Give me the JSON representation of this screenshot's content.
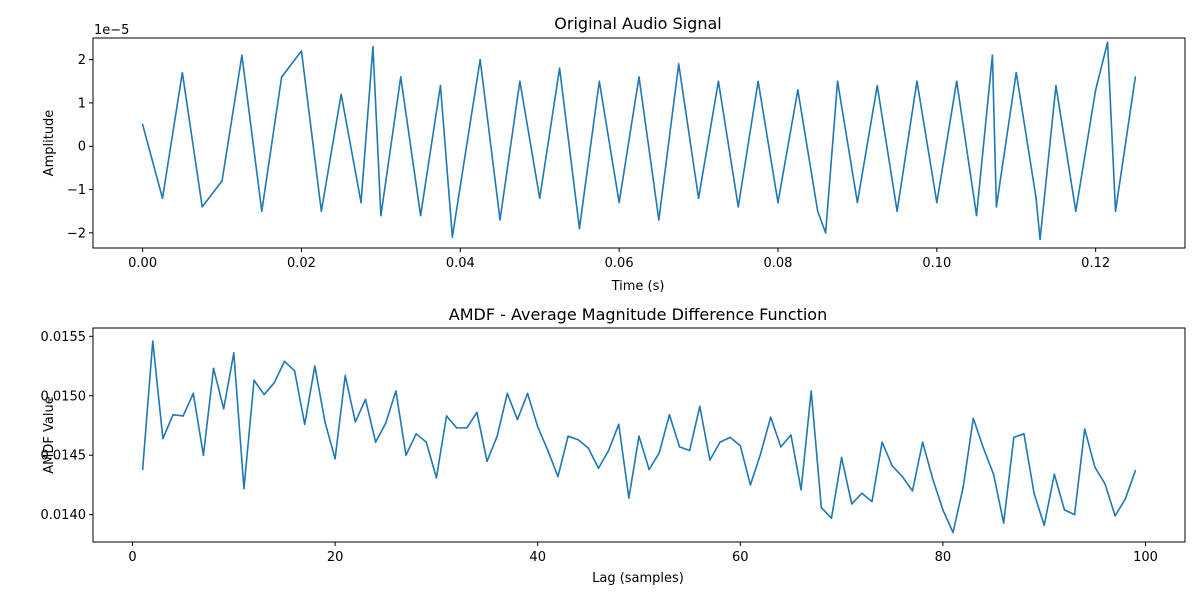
{
  "colors": {
    "series": "#1f77b4"
  },
  "chart_data": [
    {
      "type": "line",
      "title": "Original Audio Signal",
      "xlabel": "Time (s)",
      "ylabel": "Amplitude",
      "y_offset_label": "1e−5",
      "x_ticks": [
        0.0,
        0.02,
        0.04,
        0.06,
        0.08,
        0.1,
        0.12
      ],
      "x_tick_labels": [
        "0.00",
        "0.02",
        "0.04",
        "0.06",
        "0.08",
        "0.10",
        "0.12"
      ],
      "y_ticks": [
        -2,
        -1,
        0,
        1,
        2
      ],
      "y_tick_labels": [
        "−2",
        "−1",
        "0",
        "1",
        "2"
      ],
      "xlim": [
        -0.00625,
        0.13125
      ],
      "ylim": [
        -2.35,
        2.5
      ],
      "x": [
        0.0,
        0.0025,
        0.005,
        0.0075,
        0.01,
        0.0125,
        0.015,
        0.0175,
        0.02,
        0.0225,
        0.025,
        0.0275,
        0.029,
        0.03,
        0.0325,
        0.035,
        0.0375,
        0.039,
        0.0395,
        0.0425,
        0.045,
        0.0475,
        0.05,
        0.0525,
        0.055,
        0.0575,
        0.06,
        0.0625,
        0.065,
        0.0675,
        0.07,
        0.0725,
        0.075,
        0.0775,
        0.08,
        0.0825,
        0.085,
        0.086,
        0.0875,
        0.09,
        0.0925,
        0.095,
        0.0975,
        0.1,
        0.1025,
        0.105,
        0.107,
        0.1075,
        0.11,
        0.1125,
        0.113,
        0.115,
        0.1175,
        0.12,
        0.1215,
        0.1225,
        0.125
      ],
      "values": [
        0.5,
        -1.2,
        1.7,
        -1.4,
        -0.8,
        2.1,
        -1.5,
        1.6,
        2.2,
        -1.5,
        1.2,
        -1.3,
        2.3,
        -1.6,
        1.6,
        -1.6,
        1.4,
        -2.1,
        -1.5,
        2.0,
        -1.7,
        1.5,
        -1.2,
        1.8,
        -1.9,
        1.5,
        -1.3,
        1.6,
        -1.7,
        1.9,
        -1.2,
        1.5,
        -1.4,
        1.5,
        -1.3,
        1.3,
        -1.5,
        -2.0,
        1.5,
        -1.3,
        1.4,
        -1.5,
        1.5,
        -1.3,
        1.5,
        -1.6,
        2.1,
        -1.4,
        1.7,
        -1.2,
        -2.15,
        1.4,
        -1.5,
        1.3,
        2.4,
        -1.5,
        1.6
      ],
      "grid": false
    },
    {
      "type": "line",
      "title": "AMDF - Average Magnitude Difference Function",
      "xlabel": "Lag (samples)",
      "ylabel": "AMDF Value",
      "x_ticks": [
        0,
        20,
        40,
        60,
        80,
        100
      ],
      "x_tick_labels": [
        "0",
        "20",
        "40",
        "60",
        "80",
        "100"
      ],
      "y_ticks": [
        0.014,
        0.0145,
        0.015,
        0.0155
      ],
      "y_tick_labels": [
        "0.0140",
        "0.0145",
        "0.0150",
        "0.0155"
      ],
      "xlim": [
        -3.9,
        103.9
      ],
      "ylim": [
        0.01377,
        0.01557
      ],
      "x": [
        1,
        2,
        3,
        4,
        5,
        6,
        7,
        8,
        9,
        10,
        11,
        12,
        13,
        14,
        15,
        16,
        17,
        18,
        19,
        20,
        21,
        22,
        23,
        24,
        25,
        26,
        27,
        28,
        29,
        30,
        31,
        32,
        33,
        34,
        35,
        36,
        37,
        38,
        39,
        40,
        41,
        42,
        43,
        44,
        45,
        46,
        47,
        48,
        49,
        50,
        51,
        52,
        53,
        54,
        55,
        56,
        57,
        58,
        59,
        60,
        61,
        62,
        63,
        64,
        65,
        66,
        67,
        68,
        69,
        70,
        71,
        72,
        73,
        74,
        75,
        76,
        77,
        78,
        79,
        80,
        81,
        82,
        83,
        84,
        85,
        86,
        87,
        88,
        89,
        90,
        91,
        92,
        93,
        94,
        95,
        96,
        97,
        98,
        99
      ],
      "values": [
        0.01438,
        0.01546,
        0.01464,
        0.01484,
        0.01483,
        0.01502,
        0.0145,
        0.01523,
        0.01489,
        0.01536,
        0.01422,
        0.01513,
        0.01501,
        0.01511,
        0.01529,
        0.01521,
        0.01476,
        0.01525,
        0.01478,
        0.01447,
        0.01517,
        0.01478,
        0.01497,
        0.01461,
        0.01477,
        0.01504,
        0.0145,
        0.01468,
        0.01461,
        0.01431,
        0.01483,
        0.01473,
        0.01473,
        0.01486,
        0.01445,
        0.01466,
        0.01502,
        0.0148,
        0.01502,
        0.01474,
        0.01454,
        0.01432,
        0.01466,
        0.01463,
        0.01456,
        0.01439,
        0.01454,
        0.01476,
        0.01414,
        0.01466,
        0.01438,
        0.01452,
        0.01484,
        0.01457,
        0.01454,
        0.01491,
        0.01446,
        0.01461,
        0.01465,
        0.01458,
        0.01425,
        0.01451,
        0.01482,
        0.01457,
        0.01467,
        0.01421,
        0.01504,
        0.01406,
        0.01397,
        0.01448,
        0.01409,
        0.01418,
        0.01411,
        0.01461,
        0.01441,
        0.01432,
        0.0142,
        0.01461,
        0.0143,
        0.01404,
        0.01385,
        0.01423,
        0.01481,
        0.01456,
        0.01434,
        0.01393,
        0.01465,
        0.01468,
        0.01418,
        0.01391,
        0.01434,
        0.01404,
        0.014,
        0.01472,
        0.0144,
        0.01426,
        0.01399,
        0.01413,
        0.01437
      ],
      "grid": false
    }
  ]
}
